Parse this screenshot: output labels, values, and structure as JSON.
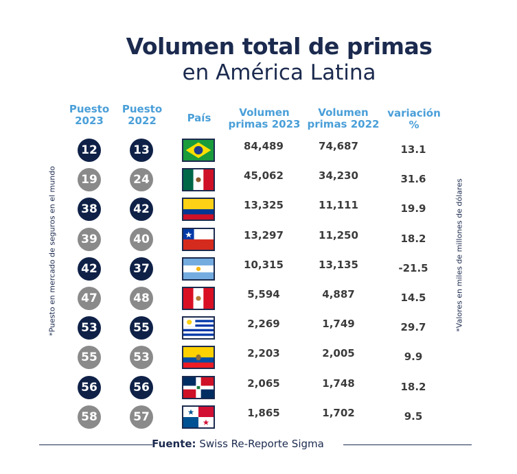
{
  "chart_data": {
    "type": "table",
    "title": "Volumen total de primas",
    "subtitle": "en América Latina",
    "columns": {
      "rank_2023": "Puesto 2023",
      "rank_2022": "Puesto 2022",
      "country": "País",
      "vol_2023": "Volumen primas 2023",
      "vol_2022": "Volumen primas 2022",
      "variation": "variación %"
    },
    "column_lines": {
      "rank_2023": [
        "Puesto",
        "2023"
      ],
      "rank_2022": [
        "Puesto",
        "2022"
      ],
      "country": [
        "País"
      ],
      "vol_2023": [
        "Volumen",
        "primas 2023"
      ],
      "vol_2022": [
        "Volumen",
        "primas 2022"
      ],
      "variation": [
        "variación",
        "%"
      ]
    },
    "rows": [
      {
        "flag": "brazil-flag",
        "rank_2023": "12",
        "rank_2022": "13",
        "vol_2023": "84,489",
        "vol_2022": "74,687",
        "variation": "13.1"
      },
      {
        "flag": "mexico-flag",
        "rank_2023": "19",
        "rank_2022": "24",
        "vol_2023": "45,062",
        "vol_2022": "34,230",
        "variation": "31.6"
      },
      {
        "flag": "colombia-flag",
        "rank_2023": "38",
        "rank_2022": "42",
        "vol_2023": "13,325",
        "vol_2022": "11,111",
        "variation": "19.9"
      },
      {
        "flag": "chile-flag",
        "rank_2023": "39",
        "rank_2022": "40",
        "vol_2023": "13,297",
        "vol_2022": "11,250",
        "variation": "18.2"
      },
      {
        "flag": "argentina-flag",
        "rank_2023": "42",
        "rank_2022": "37",
        "vol_2023": "10,315",
        "vol_2022": "13,135",
        "variation": "-21.5"
      },
      {
        "flag": "peru-flag",
        "rank_2023": "47",
        "rank_2022": "48",
        "vol_2023": "5,594",
        "vol_2022": "4,887",
        "variation": "14.5"
      },
      {
        "flag": "uruguay-flag",
        "rank_2023": "53",
        "rank_2022": "55",
        "vol_2023": "2,269",
        "vol_2022": "1,749",
        "variation": "29.7"
      },
      {
        "flag": "ecuador-flag",
        "rank_2023": "55",
        "rank_2022": "53",
        "vol_2023": "2,203",
        "vol_2022": "2,005",
        "variation": "9.9"
      },
      {
        "flag": "dominican-republic-flag",
        "rank_2023": "56",
        "rank_2022": "56",
        "vol_2023": "2,065",
        "vol_2022": "1,748",
        "variation": "18.2"
      },
      {
        "flag": "panama-flag",
        "rank_2023": "58",
        "rank_2022": "57",
        "vol_2023": "1,865",
        "vol_2022": "1,702",
        "variation": "9.5"
      }
    ],
    "notes": {
      "left": "*Puesto en mercado de seguros en el mundo",
      "right": "*Valores en miles de millones de dólares"
    },
    "source_label": "Fuente:",
    "source_text": "Swiss Re-Reporte Sigma"
  },
  "colors": {
    "navy": "#1b2a4e",
    "badge_dark": "#0f2147",
    "badge_gray": "#8a8a8a",
    "header_blue": "#4a9fd8"
  }
}
